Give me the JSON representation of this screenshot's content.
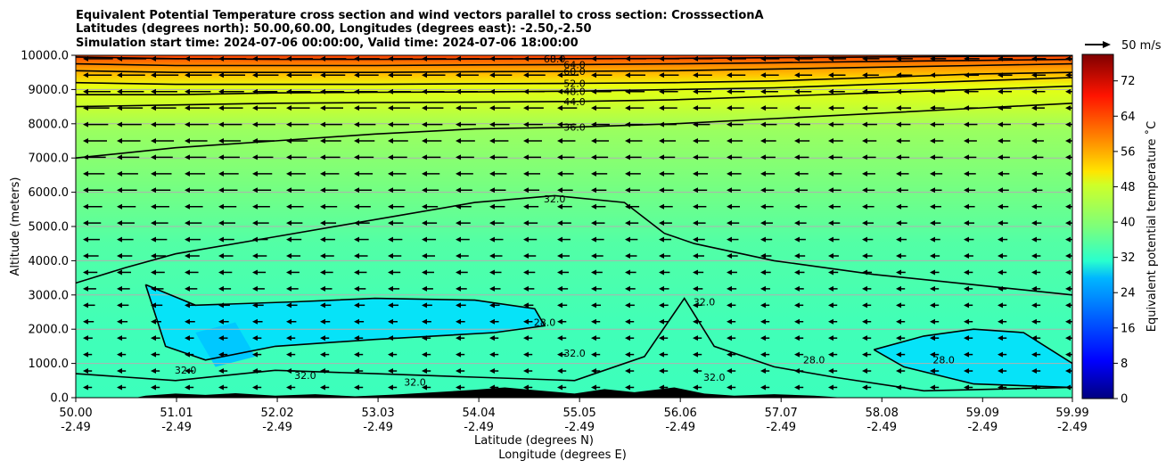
{
  "chart_data": {
    "type": "heatmap",
    "title_lines": [
      "Equivalent Potential Temperature cross section and wind vectors parallel to cross section: CrosssectionA",
      "Latitudes (degrees north): 50.00,60.00, Longitudes (degrees east): -2.50,-2.50",
      "Simulation start time: 2024-07-06 00:00:00, Valid time: 2024-07-06 18:00:00"
    ],
    "xlabel": "Latitude (degrees N)",
    "xlabel2": "Longitude (degrees E)",
    "ylabel": "Altitude (meters)",
    "x_ticks_lat": [
      "50.00",
      "51.01",
      "52.02",
      "53.03",
      "54.04",
      "55.05",
      "56.06",
      "57.07",
      "58.08",
      "59.09",
      "59.99"
    ],
    "x_ticks_lon": [
      "-2.49",
      "-2.49",
      "-2.49",
      "-2.49",
      "-2.49",
      "-2.49",
      "-2.49",
      "-2.49",
      "-2.49",
      "-2.49",
      "-2.49"
    ],
    "xlim": [
      50.0,
      59.99
    ],
    "y_ticks": [
      "0.0",
      "1000.0",
      "2000.0",
      "3000.0",
      "4000.0",
      "5000.0",
      "6000.0",
      "7000.0",
      "8000.0",
      "9000.0",
      "10000.0"
    ],
    "ylim": [
      0,
      10000
    ],
    "grid": "horizontal",
    "colorbar": {
      "label": "Equivalent potential temperature $^\\circ$C",
      "label_text": "Equivalent potential temperature ˚C",
      "ticks": [
        "0",
        "8",
        "16",
        "24",
        "32",
        "40",
        "48",
        "56",
        "64",
        "72"
      ],
      "range": [
        0,
        78
      ],
      "colormap": "jet"
    },
    "quiver_key": {
      "label": "50 m/s"
    },
    "contour_labels": [
      "68.0",
      "64.0",
      "60.0",
      "52.0",
      "48.0",
      "44.0",
      "36.0",
      "32.0",
      "28.0"
    ],
    "isentropes": [
      {
        "level": 36,
        "points": [
          [
            50.0,
            7000
          ],
          [
            51.0,
            7300
          ],
          [
            52.0,
            7500
          ],
          [
            53.0,
            7700
          ],
          [
            54.0,
            7850
          ],
          [
            55.0,
            7900
          ],
          [
            56.0,
            8000
          ],
          [
            57.0,
            8150
          ],
          [
            58.0,
            8300
          ],
          [
            59.0,
            8450
          ],
          [
            59.99,
            8600
          ]
        ]
      },
      {
        "level": 44,
        "points": [
          [
            50.0,
            8500
          ],
          [
            51.0,
            8550
          ],
          [
            52.0,
            8600
          ],
          [
            53.0,
            8620
          ],
          [
            54.0,
            8630
          ],
          [
            55.0,
            8650
          ],
          [
            56.0,
            8700
          ],
          [
            57.0,
            8800
          ],
          [
            58.0,
            8900
          ],
          [
            59.0,
            9000
          ],
          [
            59.99,
            9100
          ]
        ]
      },
      {
        "level": 48,
        "points": [
          [
            50.0,
            8850
          ],
          [
            51.0,
            8850
          ],
          [
            52.0,
            8900
          ],
          [
            53.0,
            8920
          ],
          [
            54.0,
            8930
          ],
          [
            55.0,
            8950
          ],
          [
            56.0,
            9000
          ],
          [
            57.0,
            9050
          ],
          [
            58.0,
            9150
          ],
          [
            59.0,
            9250
          ],
          [
            59.99,
            9350
          ]
        ]
      },
      {
        "level": 52,
        "points": [
          [
            50.0,
            9200
          ],
          [
            51.0,
            9150
          ],
          [
            52.0,
            9150
          ],
          [
            53.0,
            9150
          ],
          [
            54.0,
            9170
          ],
          [
            55.0,
            9180
          ],
          [
            56.0,
            9200
          ],
          [
            57.0,
            9250
          ],
          [
            58.0,
            9350
          ],
          [
            59.0,
            9450
          ],
          [
            59.99,
            9500
          ]
        ]
      },
      {
        "level": 60,
        "points": [
          [
            50.0,
            9550
          ],
          [
            51.0,
            9500
          ],
          [
            52.0,
            9500
          ],
          [
            53.0,
            9500
          ],
          [
            54.0,
            9520
          ],
          [
            55.0,
            9530
          ],
          [
            56.0,
            9550
          ],
          [
            57.0,
            9600
          ],
          [
            58.0,
            9650
          ],
          [
            59.0,
            9700
          ],
          [
            59.99,
            9750
          ]
        ]
      },
      {
        "level": 64,
        "points": [
          [
            50.0,
            9750
          ],
          [
            51.0,
            9700
          ],
          [
            52.0,
            9700
          ],
          [
            53.0,
            9700
          ],
          [
            54.0,
            9720
          ],
          [
            55.0,
            9730
          ],
          [
            56.0,
            9750
          ],
          [
            57.0,
            9780
          ],
          [
            58.0,
            9820
          ],
          [
            59.0,
            9850
          ],
          [
            59.99,
            9880
          ]
        ]
      },
      {
        "level": 68,
        "points": [
          [
            50.0,
            9950
          ],
          [
            51.0,
            9900
          ],
          [
            52.0,
            9880
          ],
          [
            53.0,
            9880
          ],
          [
            54.0,
            9890
          ],
          [
            55.0,
            9900
          ],
          [
            56.0,
            9910
          ],
          [
            57.0,
            9930
          ],
          [
            58.0,
            9950
          ],
          [
            59.0,
            9970
          ],
          [
            59.99,
            9990
          ]
        ]
      },
      {
        "level": 32,
        "points": [
          [
            50.0,
            3350
          ],
          [
            50.5,
            3800
          ],
          [
            51.0,
            4200
          ],
          [
            52.0,
            4700
          ],
          [
            53.0,
            5200
          ],
          [
            54.0,
            5700
          ],
          [
            54.8,
            5900
          ],
          [
            55.5,
            5700
          ],
          [
            55.9,
            4800
          ],
          [
            56.2,
            4500
          ],
          [
            57.0,
            4000
          ],
          [
            58.0,
            3600
          ],
          [
            59.0,
            3300
          ],
          [
            59.99,
            3000
          ]
        ]
      },
      {
        "level": 28,
        "points": [
          [
            50.7,
            3300
          ],
          [
            51.2,
            2700
          ],
          [
            52.2,
            2800
          ],
          [
            53.0,
            2900
          ],
          [
            54.0,
            2850
          ],
          [
            54.6,
            2600
          ],
          [
            54.7,
            2100
          ],
          [
            54.2,
            1900
          ],
          [
            53.0,
            1700
          ],
          [
            52.0,
            1500
          ],
          [
            51.3,
            1100
          ],
          [
            50.9,
            1500
          ],
          [
            50.7,
            3300
          ]
        ]
      },
      {
        "level": 28,
        "points": [
          [
            58.0,
            1400
          ],
          [
            58.5,
            1800
          ],
          [
            59.0,
            2000
          ],
          [
            59.5,
            1900
          ],
          [
            59.99,
            1000
          ],
          [
            59.99,
            300
          ],
          [
            59.0,
            400
          ],
          [
            58.3,
            900
          ],
          [
            58.0,
            1400
          ]
        ]
      },
      {
        "level": 32,
        "points": [
          [
            50.0,
            700
          ],
          [
            51.0,
            500
          ],
          [
            52.0,
            800
          ],
          [
            53.0,
            700
          ],
          [
            54.0,
            600
          ],
          [
            55.0,
            500
          ],
          [
            55.7,
            1200
          ],
          [
            56.1,
            2900
          ],
          [
            56.4,
            1500
          ],
          [
            57.0,
            900
          ],
          [
            57.6,
            600
          ],
          [
            58.5,
            200
          ],
          [
            59.99,
            300
          ]
        ]
      }
    ]
  }
}
